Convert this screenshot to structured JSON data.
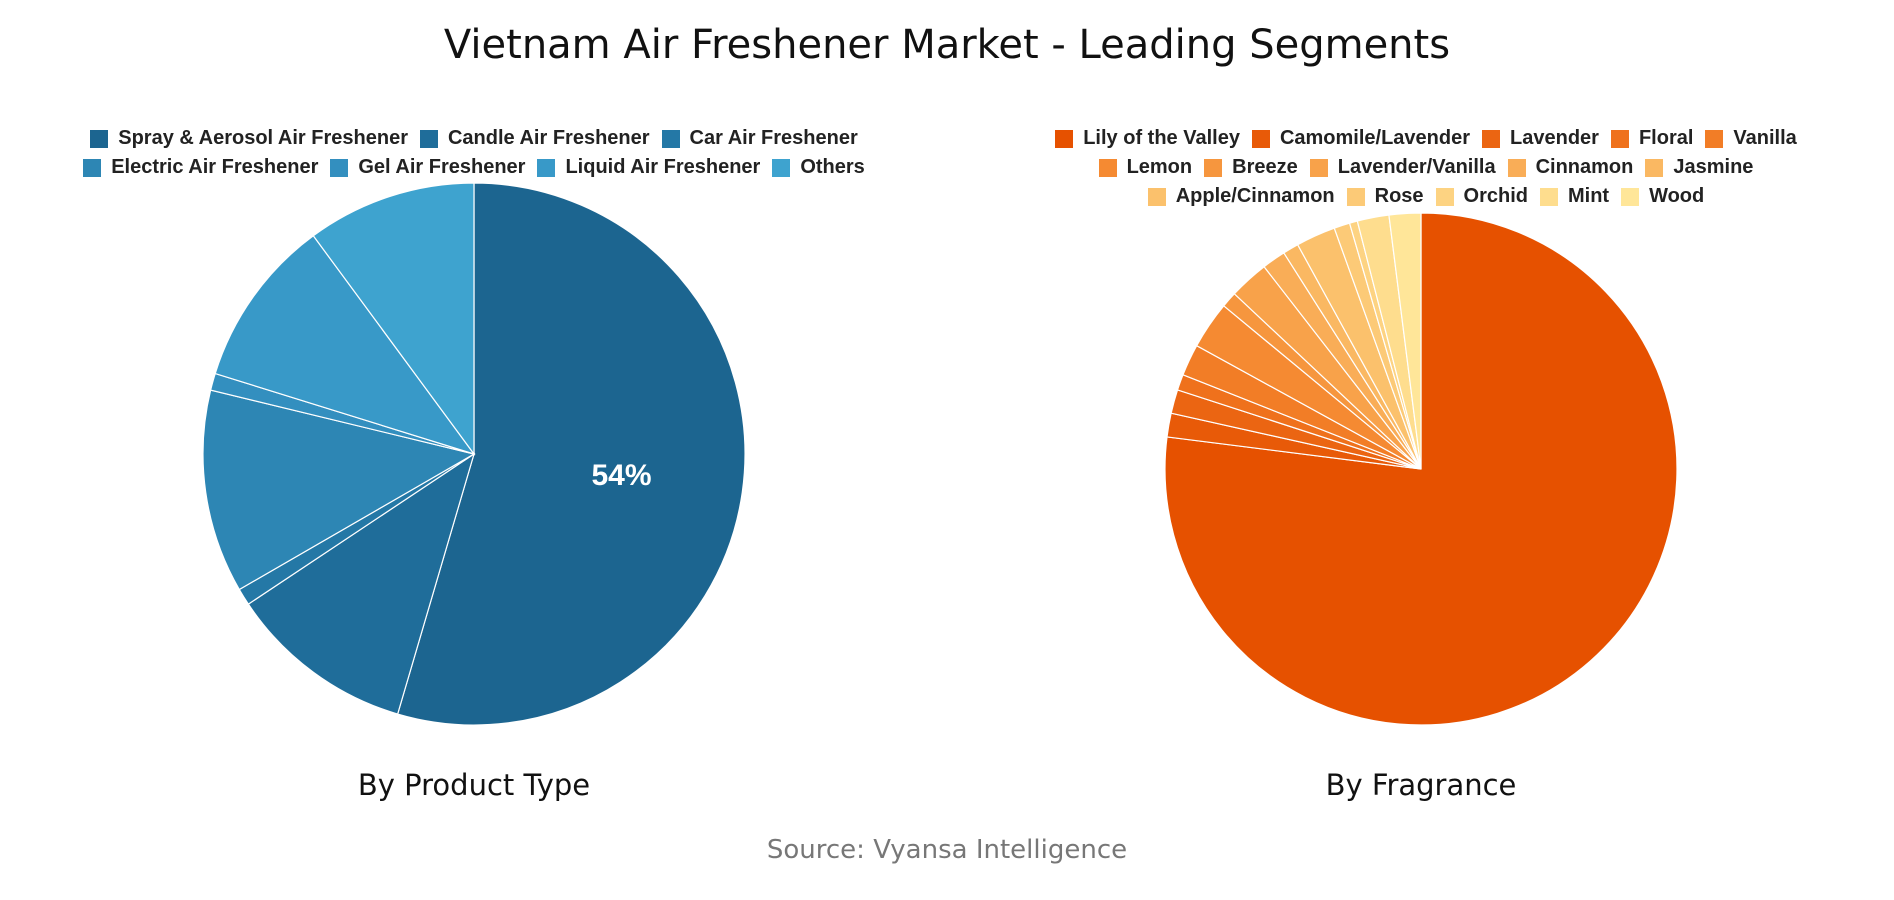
{
  "title": "Vietnam Air Freshener Market - Leading Segments",
  "source": "Source: Vyansa Intelligence",
  "chart_data": [
    {
      "type": "pie",
      "title": "By Product Type",
      "categories": [
        "Spray & Aerosol Air Freshener",
        "Candle Air Freshener",
        "Car Air Freshener",
        "Electric Air Freshener",
        "Gel Air Freshener",
        "Liquid Air Freshener",
        "Others"
      ],
      "values": [
        54,
        11,
        1,
        12,
        1,
        10,
        10
      ],
      "colors": [
        "#1c6590",
        "#1f6d9a",
        "#2478a6",
        "#2d86b4",
        "#338fbf",
        "#3899c8",
        "#3ea3cf"
      ],
      "data_labels": [
        "54%",
        "",
        "",
        "",
        "",
        "",
        ""
      ],
      "legend_rows": [
        [
          0,
          1,
          2
        ],
        [
          3,
          4,
          5,
          6
        ]
      ]
    },
    {
      "type": "pie",
      "title": "By Fragrance",
      "categories": [
        "Lily of the Valley",
        "Camomile/Lavender",
        "Lavender",
        "Floral",
        "Vanilla",
        "Lemon",
        "Breeze",
        "Lavender/Vanilla",
        "Cinnamon",
        "Jasmine",
        "Apple/Cinnamon",
        "Rose",
        "Orchid",
        "Mint",
        "Wood"
      ],
      "values": [
        77,
        1.5,
        1.5,
        1,
        2,
        3,
        1,
        2.5,
        1.5,
        1,
        2.5,
        1,
        0.5,
        2,
        2
      ],
      "colors": [
        "#e65100",
        "#e85a08",
        "#eb6512",
        "#ef711c",
        "#f27d26",
        "#f58a32",
        "#f6963e",
        "#f8a24a",
        "#f9ad57",
        "#fab862",
        "#fbc16c",
        "#fcca77",
        "#fdd382",
        "#fedd8e",
        "#ffe699"
      ],
      "legend_rows": [
        [
          0,
          1,
          2,
          3,
          4
        ],
        [
          5,
          6,
          7,
          8,
          9
        ],
        [
          10,
          11,
          12,
          13,
          14
        ]
      ]
    }
  ]
}
